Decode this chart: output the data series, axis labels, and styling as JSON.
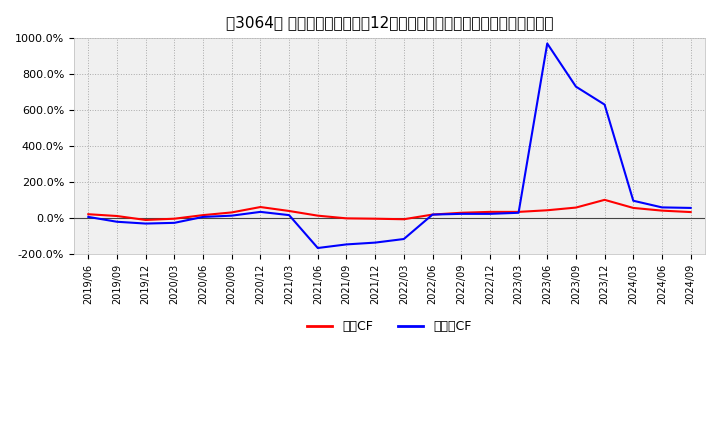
{
  "title": "［3064］ キャッシュフローの12か月移動合計の対前年同期増減率の推移",
  "ylim": [
    -200,
    1000
  ],
  "yticks": [
    -200,
    0,
    200,
    400,
    600,
    800,
    1000
  ],
  "background_color": "#ffffff",
  "plot_bg_color": "#f0f0f0",
  "grid_color": "#aaaaaa",
  "line_color_eigyo": "#ff0000",
  "line_color_free": "#0000ff",
  "legend_eigyo": "営業CF",
  "legend_free": "フリーCF",
  "dates": [
    "2019/06",
    "2019/09",
    "2019/12",
    "2020/03",
    "2020/06",
    "2020/09",
    "2020/12",
    "2021/03",
    "2021/06",
    "2021/09",
    "2021/12",
    "2022/03",
    "2022/06",
    "2022/09",
    "2022/12",
    "2023/03",
    "2023/06",
    "2023/09",
    "2023/12",
    "2024/03",
    "2024/06",
    "2024/09"
  ],
  "eigyo_cf": [
    20,
    10,
    -12,
    -5,
    15,
    30,
    60,
    38,
    12,
    -3,
    -5,
    -8,
    18,
    28,
    33,
    33,
    42,
    57,
    100,
    55,
    40,
    32
  ],
  "free_cf": [
    5,
    -22,
    -32,
    -28,
    5,
    12,
    33,
    15,
    -168,
    -148,
    -138,
    -118,
    18,
    22,
    22,
    28,
    970,
    730,
    630,
    95,
    58,
    55
  ]
}
